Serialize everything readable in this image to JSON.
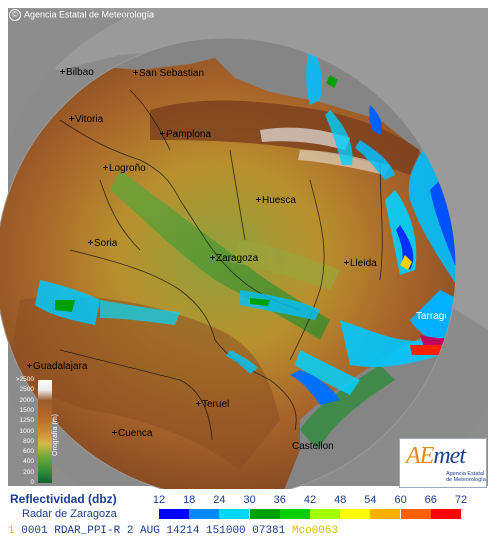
{
  "credit": "Agencia Estatal de Meteorología",
  "cities": [
    {
      "name": "Bilbao",
      "key": "bilbao"
    },
    {
      "name": "San Sebastian",
      "key": "sansebastian"
    },
    {
      "name": "Vitoria",
      "key": "vitoria"
    },
    {
      "name": "Pamplona",
      "key": "pamplona"
    },
    {
      "name": "Logroño",
      "key": "logrono"
    },
    {
      "name": "Huesca",
      "key": "huesca"
    },
    {
      "name": "Soria",
      "key": "soria"
    },
    {
      "name": "Zaragoza",
      "key": "zaragoza"
    },
    {
      "name": "Lleida",
      "key": "lleida"
    },
    {
      "name": "Tarragona",
      "key": "tarragona"
    },
    {
      "name": "Guadalajara",
      "key": "guadalajara"
    },
    {
      "name": "Teruel",
      "key": "teruel"
    },
    {
      "name": "Cuenca",
      "key": "cuenca"
    },
    {
      "name": "Castellon",
      "key": "castellon"
    }
  ],
  "elevation_legend": {
    "title": "Orografía (m)",
    "labels": [
      ">2500",
      "2500",
      "2000",
      "1500",
      "1250",
      "1000",
      "800",
      "600",
      "400",
      "200",
      "0"
    ]
  },
  "logo": {
    "brand_a": "AE",
    "brand_b": "met",
    "sub": "Agencia Estatal de Meteorología"
  },
  "reflectivity_legend": {
    "title": "Reflectividad (dbz)",
    "subtitle": "Radar de Zaragoza",
    "ticks": [
      "12",
      "18",
      "24",
      "30",
      "36",
      "42",
      "48",
      "54",
      "60",
      "66",
      "72"
    ],
    "colors": [
      "#0000ff",
      "#0088ff",
      "#00d8ff",
      "#00a000",
      "#00d000",
      "#a0ff00",
      "#ffff00",
      "#ffb000",
      "#ff6000",
      "#ff0000",
      "#c00060"
    ]
  },
  "status_line": {
    "prefix": "1",
    "text": "0001 RDAR_PPI-R    2 AUG 14214 151000 07381",
    "overlay": "Mco0063"
  }
}
